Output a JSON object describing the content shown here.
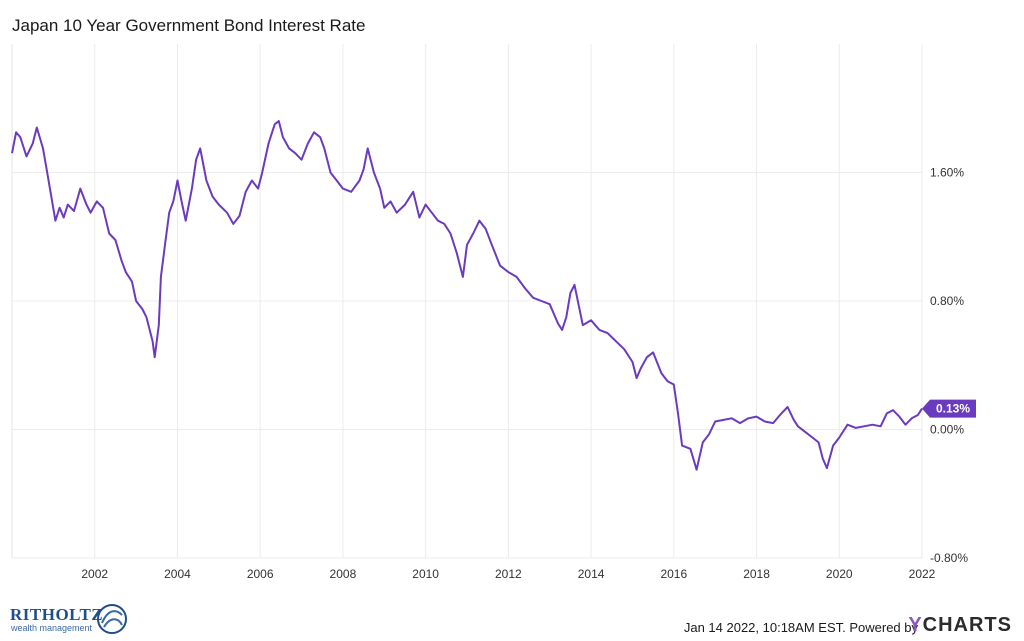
{
  "chart_data": {
    "type": "line",
    "title": "Japan 10 Year Government Bond Interest Rate",
    "xlabel": "",
    "ylabel": "",
    "xlim": [
      2000.0,
      2022.0
    ],
    "ylim": [
      -0.8,
      2.4
    ],
    "y_ticks": [
      "1.60%",
      "0.80%",
      "0.00%",
      "-0.80%"
    ],
    "y_tick_values": [
      1.6,
      0.8,
      0.0,
      -0.8
    ],
    "x_ticks": [
      "2002",
      "2004",
      "2006",
      "2008",
      "2010",
      "2012",
      "2014",
      "2016",
      "2018",
      "2020",
      "2022"
    ],
    "x_tick_values": [
      2002,
      2004,
      2006,
      2008,
      2010,
      2012,
      2014,
      2016,
      2018,
      2020,
      2022
    ],
    "grid": true,
    "series": [
      {
        "color": "#6a3bbf",
        "last_value_label": "0.13%",
        "x": [
          2000.0,
          2000.1,
          2000.2,
          2000.35,
          2000.5,
          2000.6,
          2000.75,
          2000.85,
          2000.95,
          2001.05,
          2001.15,
          2001.25,
          2001.35,
          2001.5,
          2001.65,
          2001.8,
          2001.9,
          2002.05,
          2002.2,
          2002.35,
          2002.5,
          2002.65,
          2002.75,
          2002.9,
          2003.0,
          2003.15,
          2003.25,
          2003.4,
          2003.45,
          2003.55,
          2003.6,
          2003.7,
          2003.8,
          2003.9,
          2004.0,
          2004.1,
          2004.2,
          2004.35,
          2004.45,
          2004.55,
          2004.7,
          2004.85,
          2005.0,
          2005.2,
          2005.35,
          2005.5,
          2005.65,
          2005.8,
          2005.95,
          2006.05,
          2006.2,
          2006.35,
          2006.45,
          2006.55,
          2006.7,
          2006.85,
          2007.0,
          2007.15,
          2007.3,
          2007.45,
          2007.55,
          2007.7,
          2007.85,
          2008.0,
          2008.2,
          2008.4,
          2008.5,
          2008.6,
          2008.75,
          2008.9,
          2009.0,
          2009.15,
          2009.3,
          2009.5,
          2009.7,
          2009.85,
          2010.0,
          2010.15,
          2010.3,
          2010.45,
          2010.6,
          2010.75,
          2010.9,
          2011.0,
          2011.15,
          2011.3,
          2011.45,
          2011.6,
          2011.8,
          2012.0,
          2012.2,
          2012.4,
          2012.6,
          2012.8,
          2013.0,
          2013.2,
          2013.3,
          2013.4,
          2013.5,
          2013.6,
          2013.8,
          2014.0,
          2014.2,
          2014.4,
          2014.6,
          2014.8,
          2015.0,
          2015.1,
          2015.2,
          2015.35,
          2015.5,
          2015.7,
          2015.85,
          2016.0,
          2016.1,
          2016.2,
          2016.4,
          2016.55,
          2016.7,
          2016.85,
          2017.0,
          2017.2,
          2017.4,
          2017.6,
          2017.8,
          2018.0,
          2018.2,
          2018.4,
          2018.6,
          2018.75,
          2018.9,
          2019.0,
          2019.2,
          2019.35,
          2019.5,
          2019.6,
          2019.7,
          2019.85,
          2020.0,
          2020.2,
          2020.4,
          2020.6,
          2020.8,
          2021.0,
          2021.15,
          2021.3,
          2021.45,
          2021.6,
          2021.75,
          2021.9,
          2022.0
        ],
        "y": [
          1.72,
          1.85,
          1.82,
          1.7,
          1.78,
          1.88,
          1.75,
          1.6,
          1.45,
          1.3,
          1.38,
          1.32,
          1.4,
          1.36,
          1.5,
          1.4,
          1.35,
          1.42,
          1.38,
          1.22,
          1.18,
          1.05,
          0.98,
          0.92,
          0.8,
          0.75,
          0.7,
          0.55,
          0.45,
          0.65,
          0.95,
          1.15,
          1.35,
          1.42,
          1.55,
          1.42,
          1.3,
          1.5,
          1.68,
          1.75,
          1.55,
          1.45,
          1.4,
          1.35,
          1.28,
          1.33,
          1.48,
          1.55,
          1.5,
          1.6,
          1.78,
          1.9,
          1.92,
          1.82,
          1.75,
          1.72,
          1.68,
          1.78,
          1.85,
          1.82,
          1.75,
          1.6,
          1.55,
          1.5,
          1.48,
          1.55,
          1.62,
          1.75,
          1.6,
          1.5,
          1.38,
          1.42,
          1.35,
          1.4,
          1.48,
          1.32,
          1.4,
          1.35,
          1.3,
          1.28,
          1.22,
          1.1,
          0.95,
          1.15,
          1.22,
          1.3,
          1.25,
          1.15,
          1.02,
          0.98,
          0.95,
          0.88,
          0.82,
          0.8,
          0.78,
          0.66,
          0.62,
          0.7,
          0.85,
          0.9,
          0.65,
          0.68,
          0.62,
          0.6,
          0.55,
          0.5,
          0.42,
          0.32,
          0.38,
          0.45,
          0.48,
          0.35,
          0.3,
          0.28,
          0.1,
          -0.1,
          -0.12,
          -0.25,
          -0.08,
          -0.03,
          0.05,
          0.06,
          0.07,
          0.04,
          0.07,
          0.08,
          0.05,
          0.04,
          0.1,
          0.14,
          0.06,
          0.02,
          -0.02,
          -0.05,
          -0.08,
          -0.18,
          -0.24,
          -0.1,
          -0.05,
          0.03,
          0.01,
          0.02,
          0.03,
          0.02,
          0.1,
          0.12,
          0.08,
          0.03,
          0.07,
          0.09,
          0.13
        ]
      }
    ]
  },
  "footer": {
    "date_text": "Jan 14 2022, 10:18AM EST. Powered by",
    "ycharts_y": "Y",
    "ycharts_rest": "CHARTS",
    "ritholtz_name": "RITHOLTZ",
    "ritholtz_sub": "wealth management"
  }
}
